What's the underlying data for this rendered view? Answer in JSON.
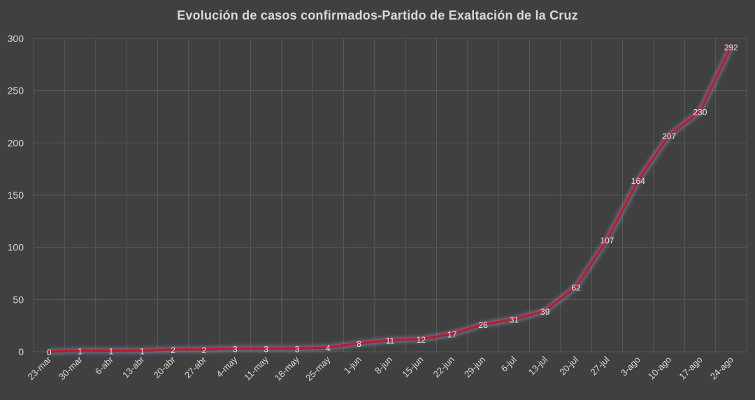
{
  "chart_data": {
    "type": "line",
    "title": "Evolución  de casos confirmados-Partido  de Exaltación de la Cruz",
    "categories": [
      "23-mar",
      "30-mar",
      "6-abr",
      "13-abr",
      "20-abr",
      "27-abr",
      "4-may",
      "11-may",
      "18-may",
      "25-may",
      "1-jun",
      "8-jun",
      "15-jun",
      "22-jun",
      "29-jun",
      "6-jul",
      "13-jul",
      "20-jul",
      "27-jul",
      "3-ago",
      "10-ago",
      "17-ago",
      "24-ago"
    ],
    "series": [
      {
        "values": [
          0,
          1,
          1,
          1,
          2,
          2,
          3,
          3,
          3,
          4,
          8,
          11,
          12,
          17,
          26,
          31,
          39,
          62,
          107,
          164,
          207,
          230,
          292
        ]
      }
    ],
    "ylim": [
      0,
      300
    ],
    "yticks": [
      0,
      50,
      100,
      150,
      200,
      250,
      300
    ],
    "grid": true,
    "legend": "none",
    "colors": {
      "background": "#404040",
      "line": "#c0192b",
      "glow": "#8fa8d8",
      "grid": "#595959",
      "text": "#d9d9d9"
    }
  }
}
